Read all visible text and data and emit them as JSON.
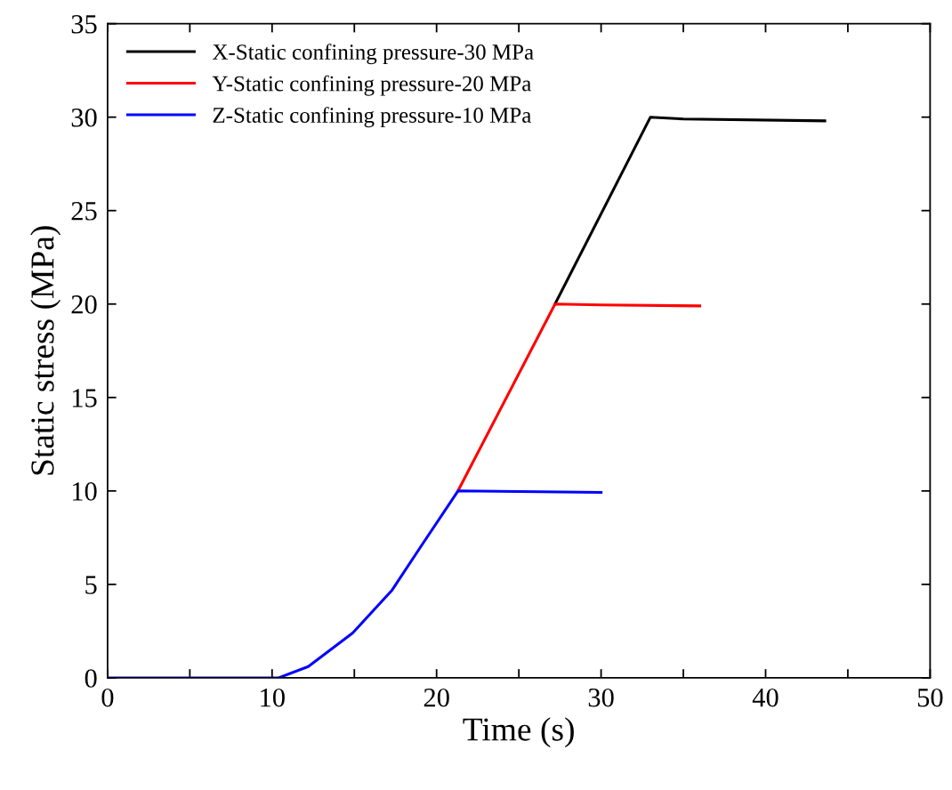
{
  "chart_data": {
    "type": "line",
    "xlabel": "Time (s)",
    "ylabel": "Static stress (MPa)",
    "xlim": [
      0,
      50
    ],
    "ylim": [
      0,
      35
    ],
    "xticks": [
      0,
      {
        "value": 5,
        "label": null
      },
      10,
      {
        "value": 15,
        "label": null
      },
      20,
      {
        "value": 25,
        "label": null
      },
      30,
      {
        "value": 35,
        "label": null
      },
      40,
      {
        "value": 45,
        "label": null
      },
      50
    ],
    "yticks": [
      0,
      5,
      10,
      15,
      20,
      25,
      30,
      35
    ],
    "legend": "top left",
    "grid": false,
    "marker": "none",
    "line_style": "solid",
    "series": [
      {
        "name": "X-Static confining pressure-30 MPa",
        "color": "#000000",
        "x": [
          27.2,
          33.0,
          35.0,
          43.6
        ],
        "values": [
          20,
          30,
          29.9,
          29.8
        ]
      },
      {
        "name": "Y-Static confining pressure-20 MPa",
        "color": "#ff0000",
        "x": [
          21.3,
          27.2,
          30.0,
          36.0
        ],
        "values": [
          10,
          20,
          19.95,
          19.9
        ]
      },
      {
        "name": "Z-Static confining pressure-10 MPa",
        "color": "#0000ff",
        "x": [
          0,
          10.4,
          12.2,
          14.9,
          17.3,
          19.1,
          21.3,
          25.0,
          30.0
        ],
        "values": [
          0,
          0,
          0.6,
          2.4,
          4.7,
          7.1,
          10,
          9.97,
          9.92
        ]
      }
    ]
  }
}
